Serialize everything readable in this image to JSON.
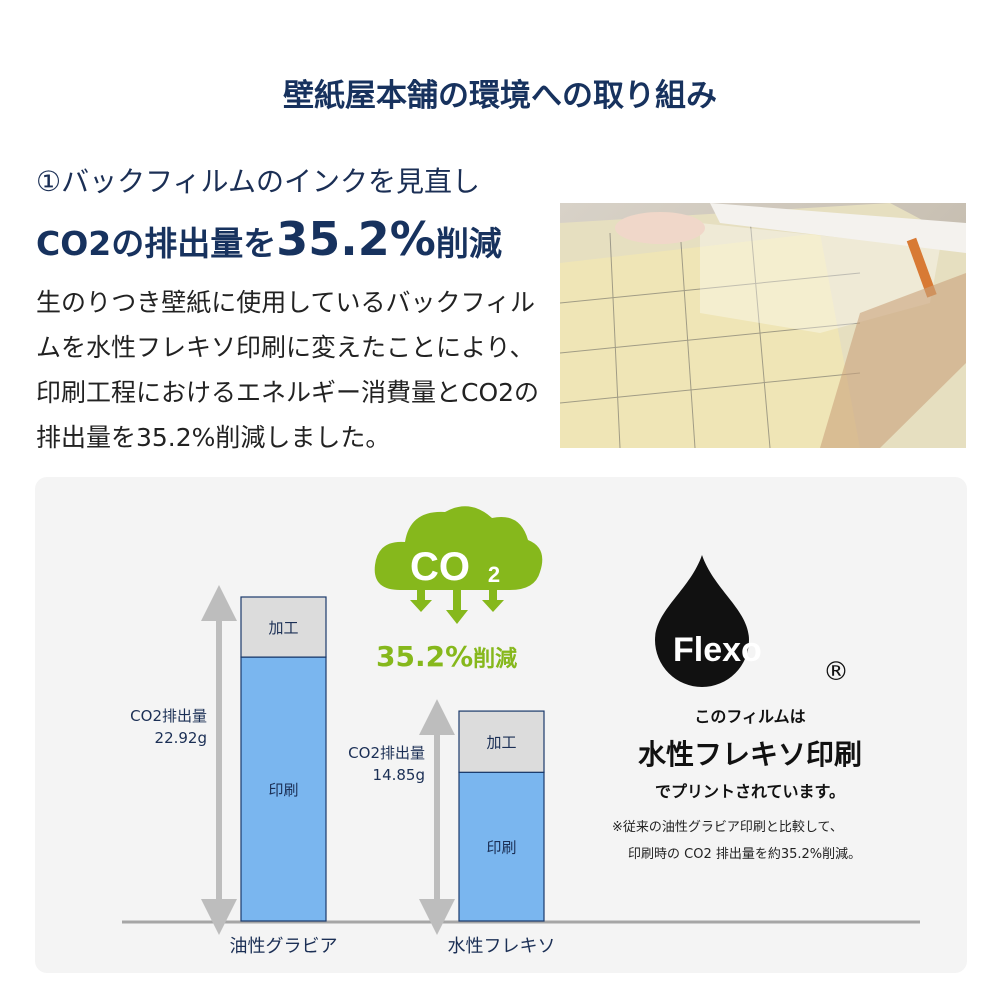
{
  "header": {
    "title": "壁紙屋本舗の環境への取り組み"
  },
  "section": {
    "subtitle": "①バックフィルムのインクを見直し",
    "headline_pre": "CO2の排出量を",
    "headline_value": "35.2%",
    "headline_post": "削減",
    "body": "生のりつき壁紙に使用しているバックフィルムを水性フレキソ印刷に変えたことにより、印刷工程におけるエネルギー消費量とCO2の排出量を35.2%削減しました。"
  },
  "cloud": {
    "label": "CO",
    "subscript": "2",
    "reduction_value": "35.2%",
    "reduction_label": "削減",
    "color": "#86b81c"
  },
  "flexo": {
    "logo_text": "Flexo",
    "registered": "®",
    "line1": "このフィルムは",
    "line2": "水性フレキソ印刷",
    "line3": "でプリントされています。",
    "note1": "※従来の油性グラビア印刷と比較して、",
    "note2": "印刷時の CO2 排出量を約35.2%削減。"
  },
  "chart_data": {
    "type": "bar",
    "stacked": true,
    "categories": [
      "油性グラビア",
      "水性フレキソ"
    ],
    "series": [
      {
        "name": "印刷",
        "values": [
          18.67,
          10.52
        ],
        "color": "#7ab6ef"
      },
      {
        "name": "加工",
        "values": [
          4.25,
          4.33
        ],
        "color": "#dcdcdc"
      }
    ],
    "totals": [
      22.92,
      14.85
    ],
    "total_labels": [
      [
        "CO2排出量",
        "22.92g"
      ],
      [
        "CO2排出量",
        "14.85g"
      ]
    ],
    "ylim": [
      0,
      22.92
    ],
    "grid": false
  }
}
